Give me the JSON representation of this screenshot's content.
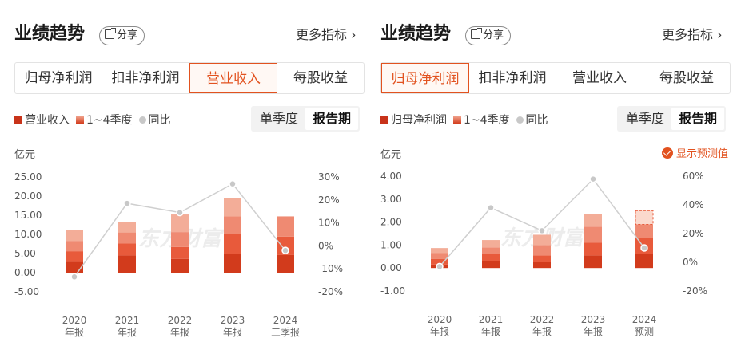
{
  "panels": [
    {
      "title": "业绩趋势",
      "share_label": "分享",
      "more_label": "更多指标",
      "tabs": [
        "归母净利润",
        "扣非净利润",
        "营业收入",
        "每股收益"
      ],
      "active_tab": 2,
      "legend": [
        "营业收入",
        "1~4季度",
        "同比"
      ],
      "segment": [
        "单季度",
        "报告期"
      ],
      "unit": "亿元",
      "show_forecast": null,
      "chart_data": {
        "type": "bar",
        "categories": [
          "2020\n年报",
          "2021\n年报",
          "2022\n年报",
          "2023\n年报",
          "2024\n三季报"
        ],
        "y_left_ticks": [
          "25.00",
          "20.00",
          "15.00",
          "10.00",
          "5.00",
          "0.00",
          "-5.00"
        ],
        "y_left_range": [
          -5,
          25
        ],
        "y_right_ticks": [
          "30%",
          "20%",
          "10%",
          "0%",
          "-10%",
          "-20%"
        ],
        "y_right_range": [
          -20,
          30
        ],
        "stacks": [
          [
            2.8,
            2.8,
            2.7,
            2.8
          ],
          [
            4.5,
            3.1,
            2.9,
            2.7
          ],
          [
            3.6,
            3.1,
            3.9,
            4.6
          ],
          [
            4.9,
            5.1,
            4.7,
            4.7
          ],
          [
            4.6,
            4.8,
            5.3
          ]
        ],
        "yoy": [
          -13.5,
          18.5,
          14.5,
          27,
          -2
        ]
      }
    },
    {
      "title": "业绩趋势",
      "share_label": "分享",
      "more_label": "更多指标",
      "tabs": [
        "归母净利润",
        "扣非净利润",
        "营业收入",
        "每股收益"
      ],
      "active_tab": 0,
      "legend": [
        "归母净利润",
        "1~4季度",
        "同比"
      ],
      "segment": [
        "单季度",
        "报告期"
      ],
      "unit": "亿元",
      "show_forecast": "显示预测值",
      "chart_data": {
        "type": "bar",
        "categories": [
          "2020\n年报",
          "2021\n年报",
          "2022\n年报",
          "2023\n年报",
          "2024\n预测"
        ],
        "y_left_ticks": [
          "4.00",
          "3.00",
          "2.00",
          "1.00",
          "0.00",
          "-1.00"
        ],
        "y_left_range": [
          -1,
          4
        ],
        "y_right_ticks": [
          "60%",
          "40%",
          "20%",
          "0%",
          "-20%"
        ],
        "y_right_range": [
          -20,
          60
        ],
        "stacks": [
          [
            0.15,
            0.25,
            0.25,
            0.22
          ],
          [
            0.3,
            0.3,
            0.3,
            0.32
          ],
          [
            0.25,
            0.3,
            0.45,
            0.45
          ],
          [
            0.55,
            0.55,
            0.7,
            0.55
          ],
          [
            0.6,
            0.7,
            0.6,
            0.6
          ]
        ],
        "yoy": [
          -3,
          38,
          22,
          58,
          10
        ],
        "forecast_index": 4
      }
    }
  ],
  "colors": {
    "accent": "#e2521f",
    "q1": "#d23b1c",
    "q2": "#e85a3b",
    "q3": "#ef8a72",
    "q4": "#f3ad98",
    "line": "#cfcfcf",
    "watermark": "#ececec"
  },
  "watermark": "东方财富"
}
